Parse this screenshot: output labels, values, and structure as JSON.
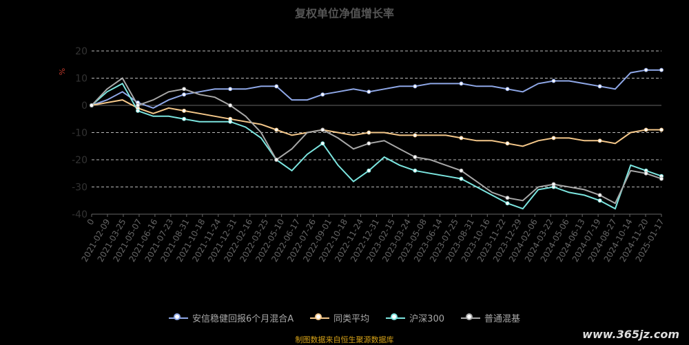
{
  "chart_data": {
    "type": "line",
    "title": "复权单位净值增长率",
    "ylabel": "%",
    "ylim": [
      -40,
      20
    ],
    "yticks": [
      20,
      10,
      0,
      -10,
      -20,
      -30,
      -40
    ],
    "xticks": [
      "0",
      "2021-02-09",
      "2021-03-25",
      "2021-05-07",
      "2021-06-16",
      "2021-07-23",
      "2021-08-31",
      "2021-10-18",
      "2021-11-24",
      "2021-12-31",
      "2022-02-16",
      "2022-03-25",
      "2022-05-10",
      "2022-06-17",
      "2022-07-26",
      "2022-09-01",
      "2022-10-18",
      "2022-11-24",
      "2022-12-31",
      "2023-02-15",
      "2023-03-24",
      "2023-05-08",
      "2023-06-14",
      "2023-07-25",
      "2023-08-31",
      "2023-10-16",
      "2023-11-22",
      "2023-12-29",
      "2024-02-06",
      "2024-03-22",
      "2024-05-06",
      "2024-06-13",
      "2024-07-19",
      "2024-08-27",
      "2024-10-14",
      "2024-11-20",
      "2025-01-17"
    ],
    "grid": true,
    "legend_position": "bottom",
    "series": [
      {
        "name": "安信稳健回报6个月混合A",
        "color": "#8fa8e8",
        "values": [
          0,
          2,
          5,
          1,
          -1,
          2,
          4,
          5,
          6,
          6,
          6,
          7,
          7,
          2,
          2,
          4,
          5,
          6,
          5,
          6,
          7,
          7,
          8,
          8,
          8,
          7,
          7,
          6,
          5,
          8,
          9,
          9,
          8,
          7,
          6,
          12,
          13,
          13
        ]
      },
      {
        "name": "同类平均",
        "color": "#f5c88a",
        "values": [
          0,
          1,
          2,
          -1,
          -3,
          -1,
          -2,
          -3,
          -4,
          -5,
          -6,
          -7,
          -9,
          -11,
          -10,
          -9,
          -10,
          -11,
          -10,
          -10,
          -11,
          -11,
          -11,
          -11,
          -12,
          -13,
          -13,
          -14,
          -15,
          -13,
          -12,
          -12,
          -13,
          -13,
          -14,
          -10,
          -9,
          -9
        ]
      },
      {
        "name": "沪深300",
        "color": "#7ce6e0",
        "values": [
          0,
          5,
          8,
          -2,
          -4,
          -4,
          -5,
          -6,
          -6,
          -6,
          -8,
          -12,
          -20,
          -24,
          -18,
          -14,
          -22,
          -28,
          -24,
          -19,
          -22,
          -24,
          -25,
          -26,
          -27,
          -30,
          -33,
          -36,
          -38,
          -31,
          -30,
          -32,
          -33,
          -35,
          -38,
          -22,
          -24,
          -26
        ]
      },
      {
        "name": "普通混基",
        "color": "#a8a8a8",
        "values": [
          0,
          6,
          10,
          0,
          2,
          5,
          6,
          4,
          3,
          0,
          -4,
          -10,
          -20,
          -16,
          -10,
          -9,
          -12,
          -16,
          -14,
          -13,
          -16,
          -19,
          -20,
          -22,
          -24,
          -28,
          -32,
          -34,
          -35,
          -30,
          -29,
          -30,
          -31,
          -33,
          -36,
          -24,
          -25,
          -27
        ]
      }
    ],
    "source": "制图数据来自恒生聚源数据库",
    "watermark": "www.365jz.com"
  }
}
